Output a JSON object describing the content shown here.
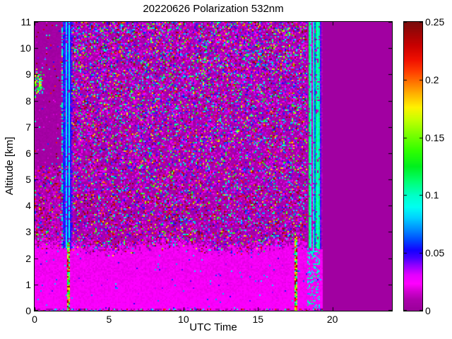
{
  "figure": {
    "title": "20220626 Polarization 532nm",
    "background_color": "#ffffff"
  },
  "axes": {
    "xlabel": "UTC Time",
    "ylabel": "Altitude [km]",
    "x_range": [
      0,
      24
    ],
    "y_range": [
      0,
      11
    ],
    "x_ticks": {
      "values": [
        0,
        5,
        10,
        15,
        20
      ],
      "labels": [
        "0",
        "5",
        "10",
        "15",
        "20"
      ]
    },
    "y_ticks": {
      "values": [
        0,
        1,
        2,
        3,
        4,
        5,
        6,
        7,
        8,
        9,
        10,
        11
      ],
      "labels": [
        "0",
        "1",
        "2",
        "3",
        "4",
        "5",
        "6",
        "7",
        "8",
        "9",
        "10",
        "11"
      ]
    }
  },
  "colorbar": {
    "min": 0,
    "max": 0.25,
    "ticks": [
      0,
      0.05,
      0.1,
      0.15,
      0.2,
      0.25
    ],
    "labels": [
      "0",
      "0.05",
      "0.1",
      "0.15",
      "0.2",
      "0.25"
    ]
  },
  "chart_data": {
    "type": "heatmap",
    "title": "20220626 Polarization 532nm",
    "xlabel": "UTC Time",
    "ylabel": "Altitude [km]",
    "x_range_hours": [
      0,
      24
    ],
    "y_range_km": [
      0,
      11
    ],
    "value_range": [
      0,
      0.25
    ],
    "legend_position": "right-colorbar",
    "grid": false,
    "no_data_color": "#990099",
    "colormap_stops": [
      {
        "pos": 0.0,
        "color": "#990099"
      },
      {
        "pos": 0.04,
        "color": "#ad00ad"
      },
      {
        "pos": 0.07,
        "color": "#d400d4"
      },
      {
        "pos": 0.095,
        "color": "#ff00ff"
      },
      {
        "pos": 0.125,
        "color": "#e300ff"
      },
      {
        "pos": 0.155,
        "color": "#9900ff"
      },
      {
        "pos": 0.185,
        "color": "#4400ff"
      },
      {
        "pos": 0.21,
        "color": "#1500ff"
      },
      {
        "pos": 0.245,
        "color": "#0048ff"
      },
      {
        "pos": 0.285,
        "color": "#0090ff"
      },
      {
        "pos": 0.325,
        "color": "#00d4ff"
      },
      {
        "pos": 0.36,
        "color": "#00fff2"
      },
      {
        "pos": 0.4,
        "color": "#00ffc8"
      },
      {
        "pos": 0.45,
        "color": "#00ff70"
      },
      {
        "pos": 0.5,
        "color": "#00f01e"
      },
      {
        "pos": 0.555,
        "color": "#30ff00"
      },
      {
        "pos": 0.615,
        "color": "#80ff00"
      },
      {
        "pos": 0.665,
        "color": "#c8ff00"
      },
      {
        "pos": 0.705,
        "color": "#fff200"
      },
      {
        "pos": 0.75,
        "color": "#ffb400"
      },
      {
        "pos": 0.79,
        "color": "#ff7800"
      },
      {
        "pos": 0.83,
        "color": "#ff3c00"
      },
      {
        "pos": 0.87,
        "color": "#f01000"
      },
      {
        "pos": 0.92,
        "color": "#c80000"
      },
      {
        "pos": 0.965,
        "color": "#9c0606"
      },
      {
        "pos": 1.0,
        "color": "#7a0e0e"
      }
    ],
    "features": {
      "no_data": {
        "start_hour": 19.35,
        "value": 0.004
      },
      "boundary": {
        "top_km": 2.42,
        "wave_amp_km": 0.12,
        "layer_value": 0.022,
        "surface_line_km": 0.1
      },
      "quiet": {
        "end_hour": 1.82,
        "solid_above_km": 5.5
      },
      "patch": {
        "hours": [
          0.05,
          0.7
        ],
        "alt_km": [
          8.05,
          9.3
        ],
        "center_km": 8.68,
        "vmin": 0.075,
        "vmax": 0.195
      },
      "stripe": {
        "hours": [
          1.78,
          2.56
        ],
        "core_hours": [
          1.93,
          2.44
        ],
        "pattern": [
          0.09,
          0.052,
          0.048,
          0.1,
          0.058,
          0.046,
          0.085,
          0.05
        ]
      },
      "spikes": [
        {
          "hour": 2.28,
          "half_width_h": 0.055,
          "top_km": 2.6,
          "vmin": 0.08,
          "vmax": 0.26
        },
        {
          "hour": 17.55,
          "half_width_h": 0.055,
          "top_km": 2.8,
          "vmin": 0.08,
          "vmax": 0.26
        }
      ],
      "cyan_band": {
        "hours": [
          18.3,
          19.12
        ],
        "pattern": [
          0.097,
          0.108,
          0.088,
          0.008,
          0.115,
          0.095,
          0.016,
          0.102,
          0.062,
          0.11
        ]
      },
      "violet_band": {
        "hours": [
          19.12,
          19.35
        ],
        "pattern": [
          0.032,
          0.016,
          0.045,
          0.01
        ]
      }
    }
  }
}
